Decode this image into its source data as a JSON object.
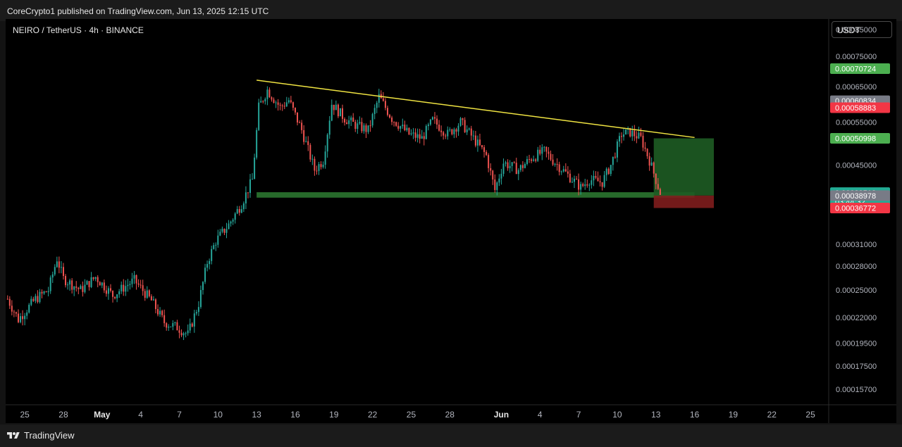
{
  "header": {
    "published": "CoreCrypto1 published on TradingView.com, Jun 13, 2025 12:15 UTC",
    "symbol": "NEIRO / TetherUS · 4h · BINANCE",
    "currency": "USDT"
  },
  "footer": {
    "brand": "TradingView"
  },
  "colors": {
    "up": "#26a69a",
    "down": "#ef5350",
    "trendline": "#f0e442",
    "support_zone": "#2e7d32",
    "target_zone": "#1e5c24",
    "stop_zone": "#7f1d1d",
    "axis_text": "#b2b5be"
  },
  "chart_data": {
    "type": "candlestick",
    "timeframe": "4h",
    "y_scale": "log",
    "ylim": [
      0.000146,
      0.00089
    ],
    "xlim": [
      "2025-04-23T15:00",
      "2025-06-26T10:00"
    ],
    "x_ticks": [
      {
        "date": "2025-04-25",
        "label": "25"
      },
      {
        "date": "2025-04-28",
        "label": "28"
      },
      {
        "date": "2025-05-01",
        "label": "May"
      },
      {
        "date": "2025-05-04",
        "label": "4"
      },
      {
        "date": "2025-05-07",
        "label": "7"
      },
      {
        "date": "2025-05-10",
        "label": "10"
      },
      {
        "date": "2025-05-13",
        "label": "13"
      },
      {
        "date": "2025-05-16",
        "label": "16"
      },
      {
        "date": "2025-05-19",
        "label": "19"
      },
      {
        "date": "2025-05-22",
        "label": "22"
      },
      {
        "date": "2025-05-25",
        "label": "25"
      },
      {
        "date": "2025-05-28",
        "label": "28"
      },
      {
        "date": "2025-06-01",
        "label": "Jun"
      },
      {
        "date": "2025-06-04",
        "label": "4"
      },
      {
        "date": "2025-06-07",
        "label": "7"
      },
      {
        "date": "2025-06-10",
        "label": "10"
      },
      {
        "date": "2025-06-13",
        "label": "13"
      },
      {
        "date": "2025-06-16",
        "label": "16"
      },
      {
        "date": "2025-06-19",
        "label": "19"
      },
      {
        "date": "2025-06-22",
        "label": "22"
      },
      {
        "date": "2025-06-25",
        "label": "25"
      }
    ],
    "y_ticks": [
      "0.00085000",
      "0.00075000",
      "0.00065000",
      "0.00055000",
      "0.00045000",
      "0.00031000",
      "0.00028000",
      "0.00025000",
      "0.00022000",
      "0.00019500",
      "0.00017500",
      "0.00015700"
    ],
    "price_path": [
      [
        "2025-04-23T16:00",
        0.00024
      ],
      [
        "2025-04-24T12:00",
        0.000218
      ],
      [
        "2025-04-25T20:00",
        0.00024
      ],
      [
        "2025-04-26T20:00",
        0.00025
      ],
      [
        "2025-04-27T12:00",
        0.00029
      ],
      [
        "2025-04-28T00:00",
        0.000264
      ],
      [
        "2025-04-29T08:00",
        0.00025
      ],
      [
        "2025-04-30T12:00",
        0.000266
      ],
      [
        "2025-05-01T20:00",
        0.000244
      ],
      [
        "2025-05-02T20:00",
        0.000255
      ],
      [
        "2025-05-03T12:00",
        0.000262
      ],
      [
        "2025-05-04T20:00",
        0.000238
      ],
      [
        "2025-05-05T20:00",
        0.000215
      ],
      [
        "2025-05-06T20:00",
        0.00021
      ],
      [
        "2025-05-07T16:00",
        0.000203
      ],
      [
        "2025-05-08T12:00",
        0.000235
      ],
      [
        "2025-05-09T04:00",
        0.000285
      ],
      [
        "2025-05-09T20:00",
        0.000315
      ],
      [
        "2025-05-10T20:00",
        0.00034
      ],
      [
        "2025-05-11T20:00",
        0.000375
      ],
      [
        "2025-05-12T16:00",
        0.00042
      ],
      [
        "2025-05-13T04:00",
        0.00059
      ],
      [
        "2025-05-13T20:00",
        0.00064
      ],
      [
        "2025-05-14T20:00",
        0.00059
      ],
      [
        "2025-05-15T12:00",
        0.00061
      ],
      [
        "2025-05-16T12:00",
        0.00053
      ],
      [
        "2025-05-17T12:00",
        0.00044
      ],
      [
        "2025-05-18T04:00",
        0.00046
      ],
      [
        "2025-05-18T20:00",
        0.0006
      ],
      [
        "2025-05-19T20:00",
        0.00056
      ],
      [
        "2025-05-20T20:00",
        0.00054
      ],
      [
        "2025-05-21T16:00",
        0.00053
      ],
      [
        "2025-05-22T12:00",
        0.00062
      ],
      [
        "2025-05-23T12:00",
        0.00056
      ],
      [
        "2025-05-24T20:00",
        0.00052
      ],
      [
        "2025-05-25T20:00",
        0.00051
      ],
      [
        "2025-05-26T16:00",
        0.000555
      ],
      [
        "2025-05-27T20:00",
        0.00052
      ],
      [
        "2025-05-28T20:00",
        0.00055
      ],
      [
        "2025-05-29T20:00",
        0.00051
      ],
      [
        "2025-05-30T20:00",
        0.00047
      ],
      [
        "2025-05-31T12:00",
        0.0004
      ],
      [
        "2025-06-01T04:00",
        0.000455
      ],
      [
        "2025-06-02T08:00",
        0.00044
      ],
      [
        "2025-06-03T08:00",
        0.000465
      ],
      [
        "2025-06-04T08:00",
        0.00048
      ],
      [
        "2025-06-05T00:00",
        0.00046
      ],
      [
        "2025-06-06T08:00",
        0.000425
      ],
      [
        "2025-06-07T04:00",
        0.000405
      ],
      [
        "2025-06-07T20:00",
        0.00042
      ],
      [
        "2025-06-08T20:00",
        0.000415
      ],
      [
        "2025-06-09T12:00",
        0.00045
      ],
      [
        "2025-06-10T08:00",
        0.00052
      ],
      [
        "2025-06-11T00:00",
        0.000525
      ],
      [
        "2025-06-11T20:00",
        0.00051
      ],
      [
        "2025-06-12T12:00",
        0.00046
      ],
      [
        "2025-06-13T08:00",
        0.000395
      ]
    ],
    "trendline": {
      "start": [
        "2025-05-13T00:00",
        0.00067
      ],
      "end": [
        "2025-06-16T00:00",
        0.000512
      ]
    },
    "support_zone": {
      "start": "2025-05-13T00:00",
      "end": "2025-06-16T00:00",
      "top": 0.000396,
      "bottom": 0.000386
    },
    "long_position": {
      "start": "2025-06-12T20:00",
      "end": "2025-06-17T12:00",
      "entry": 0.0003898,
      "target": 0.00050998,
      "stop": 0.00036772
    },
    "price_labels": [
      {
        "text": "0.00070724",
        "value": 0.00070724,
        "color": "#4caf50"
      },
      {
        "text": "0.00060834",
        "value": 0.00060834,
        "color": "#787b86"
      },
      {
        "text": "0.00058883",
        "value": 0.00058883,
        "color": "#f23645"
      },
      {
        "text": "0.00050998",
        "value": 0.00050998,
        "color": "#4caf50"
      },
      {
        "text": "0.00039518",
        "value": 0.00039518,
        "color": "#22ab94",
        "sub": "03:44:32"
      },
      {
        "text": "0.00038978",
        "value": 0.00038978,
        "color": "#787b86"
      },
      {
        "text": "0.00036772",
        "value": 0.00036772,
        "color": "#f23645"
      }
    ]
  }
}
